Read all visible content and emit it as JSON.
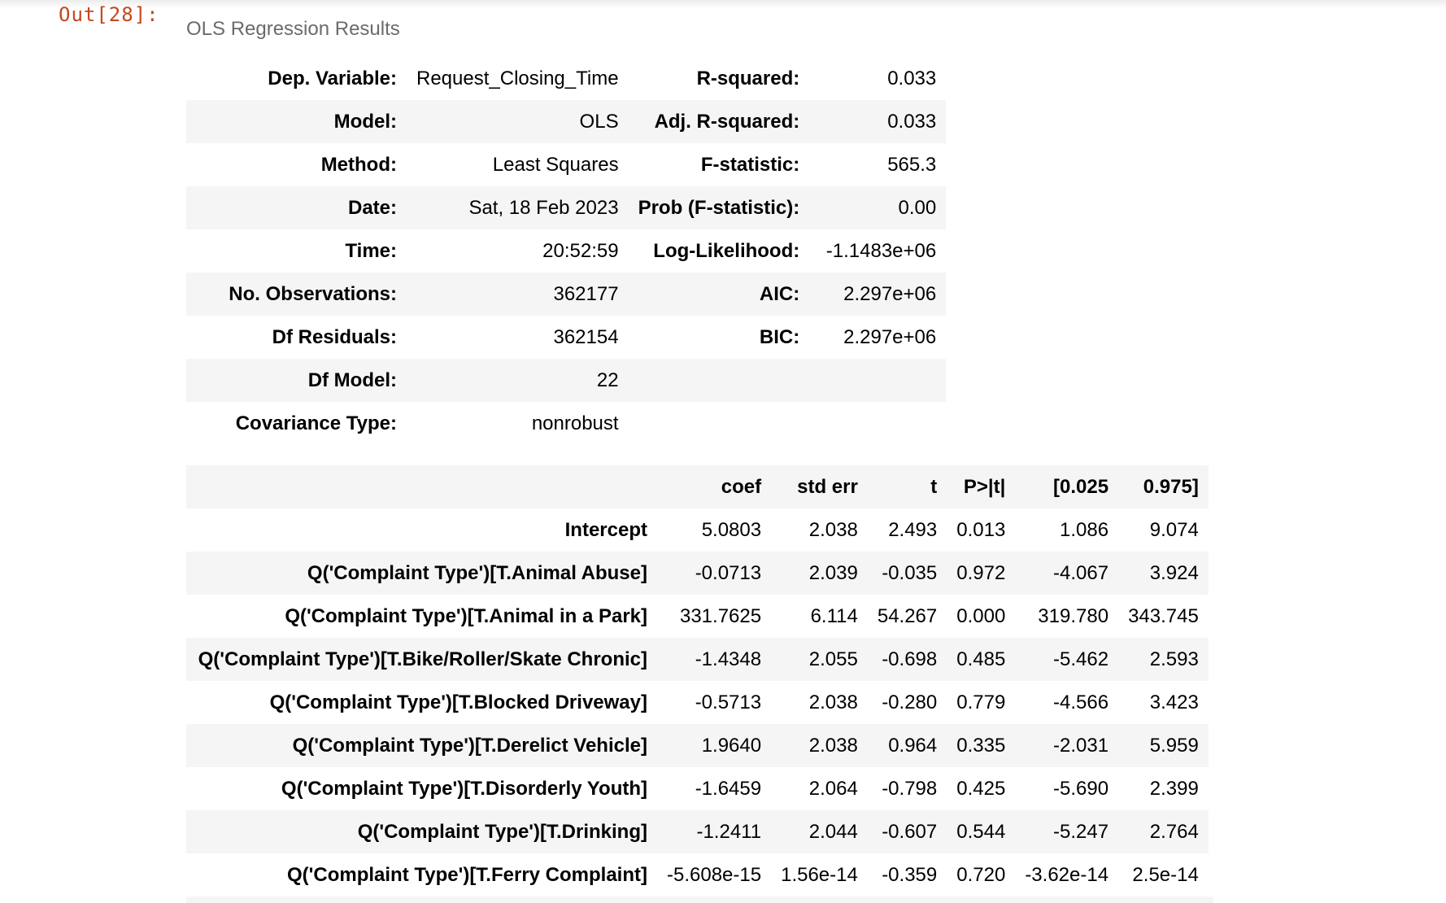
{
  "cell": {
    "prompt": "Out[28]:",
    "caption": "OLS Regression Results"
  },
  "summary": {
    "rows": [
      [
        "Dep. Variable:",
        "Request_Closing_Time",
        "R-squared:",
        "0.033"
      ],
      [
        "Model:",
        "OLS",
        "Adj. R-squared:",
        "0.033"
      ],
      [
        "Method:",
        "Least Squares",
        "F-statistic:",
        "565.3"
      ],
      [
        "Date:",
        "Sat, 18 Feb 2023",
        "Prob (F-statistic):",
        "0.00"
      ],
      [
        "Time:",
        "20:52:59",
        "Log-Likelihood:",
        "-1.1483e+06"
      ],
      [
        "No. Observations:",
        "362177",
        "AIC:",
        "2.297e+06"
      ],
      [
        "Df Residuals:",
        "362154",
        "BIC:",
        "2.297e+06"
      ],
      [
        "Df Model:",
        "22",
        "",
        ""
      ],
      [
        "Covariance Type:",
        "nonrobust",
        "",
        ""
      ]
    ]
  },
  "coefficients": {
    "header": [
      "",
      "coef",
      "std err",
      "t",
      "P>|t|",
      "[0.025",
      "0.975]"
    ],
    "rows": [
      [
        "Intercept",
        "5.0803",
        "2.038",
        "2.493",
        "0.013",
        "1.086",
        "9.074"
      ],
      [
        "Q('Complaint Type')[T.Animal Abuse]",
        "-0.0713",
        "2.039",
        "-0.035",
        "0.972",
        "-4.067",
        "3.924"
      ],
      [
        "Q('Complaint Type')[T.Animal in a Park]",
        "331.7625",
        "6.114",
        "54.267",
        "0.000",
        "319.780",
        "343.745"
      ],
      [
        "Q('Complaint Type')[T.Bike/Roller/Skate Chronic]",
        "-1.4348",
        "2.055",
        "-0.698",
        "0.485",
        "-5.462",
        "2.593"
      ],
      [
        "Q('Complaint Type')[T.Blocked Driveway]",
        "-0.5713",
        "2.038",
        "-0.280",
        "0.779",
        "-4.566",
        "3.423"
      ],
      [
        "Q('Complaint Type')[T.Derelict Vehicle]",
        "1.9640",
        "2.038",
        "0.964",
        "0.335",
        "-2.031",
        "5.959"
      ],
      [
        "Q('Complaint Type')[T.Disorderly Youth]",
        "-1.6459",
        "2.064",
        "-0.798",
        "0.425",
        "-5.690",
        "2.399"
      ],
      [
        "Q('Complaint Type')[T.Drinking]",
        "-1.2411",
        "2.044",
        "-0.607",
        "0.544",
        "-5.247",
        "2.764"
      ],
      [
        "Q('Complaint Type')[T.Ferry Complaint]",
        "-5.608e-15",
        "1.56e-14",
        "-0.359",
        "0.720",
        "-3.62e-14",
        "2.5e-14"
      ]
    ]
  }
}
